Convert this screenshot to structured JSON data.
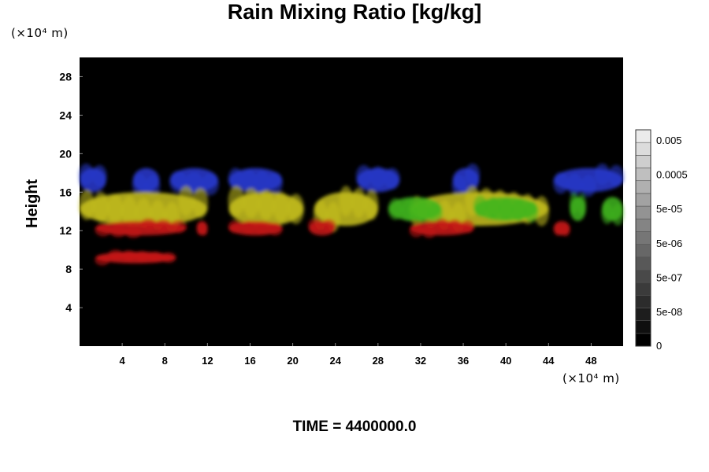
{
  "chart_data": {
    "type": "heatmap",
    "title": "Rain Mixing Ratio [kg/kg]",
    "ylabel": "Height",
    "x_unit": "(×10⁴ m)",
    "y_unit": "(×10⁴ m)",
    "x_ticks": [
      4,
      8,
      12,
      16,
      20,
      24,
      28,
      32,
      36,
      40,
      44,
      48
    ],
    "y_ticks": [
      4,
      8,
      12,
      16,
      20,
      24,
      28
    ],
    "xlim": [
      0,
      51
    ],
    "ylim": [
      0,
      30
    ],
    "colorbar": {
      "labels": [
        "0.005",
        "0.0005",
        "5e-05",
        "5e-06",
        "5e-07",
        "5e-08",
        "0"
      ],
      "levels": 17
    },
    "layers": [
      {
        "name": "upper-blue",
        "color": "#2a3bd0",
        "y_range": [
          16,
          18.5
        ],
        "x_spans": [
          [
            0,
            2.5
          ],
          [
            5,
            7.5
          ],
          [
            8.5,
            13
          ],
          [
            14,
            19
          ],
          [
            26,
            30
          ],
          [
            35,
            37.5
          ],
          [
            44.5,
            51
          ]
        ]
      },
      {
        "name": "middle-yellow",
        "color": "#c9c21c",
        "y_range": [
          12.5,
          16
        ],
        "x_spans": [
          [
            0,
            12
          ],
          [
            14,
            21
          ],
          [
            22,
            28
          ],
          [
            31,
            44
          ]
        ]
      },
      {
        "name": "middle-green",
        "color": "#3fb51c",
        "y_range": [
          13,
          15.5
        ],
        "x_spans": [
          [
            29,
            34
          ],
          [
            37,
            43
          ],
          [
            46,
            47.5
          ],
          [
            49,
            51
          ]
        ]
      },
      {
        "name": "lower-red",
        "color": "#c81414",
        "y_range": [
          11.5,
          13
        ],
        "x_spans": [
          [
            1.5,
            10
          ],
          [
            11,
            12
          ],
          [
            14,
            19
          ],
          [
            21.5,
            24
          ],
          [
            31,
            37
          ],
          [
            44.5,
            46
          ]
        ]
      },
      {
        "name": "low-red-band",
        "color": "#d21818",
        "y_range": [
          8.6,
          9.8
        ],
        "x_spans": [
          [
            1.5,
            9
          ]
        ]
      }
    ]
  },
  "footer": {
    "time_label": "TIME = 4400000.0"
  }
}
